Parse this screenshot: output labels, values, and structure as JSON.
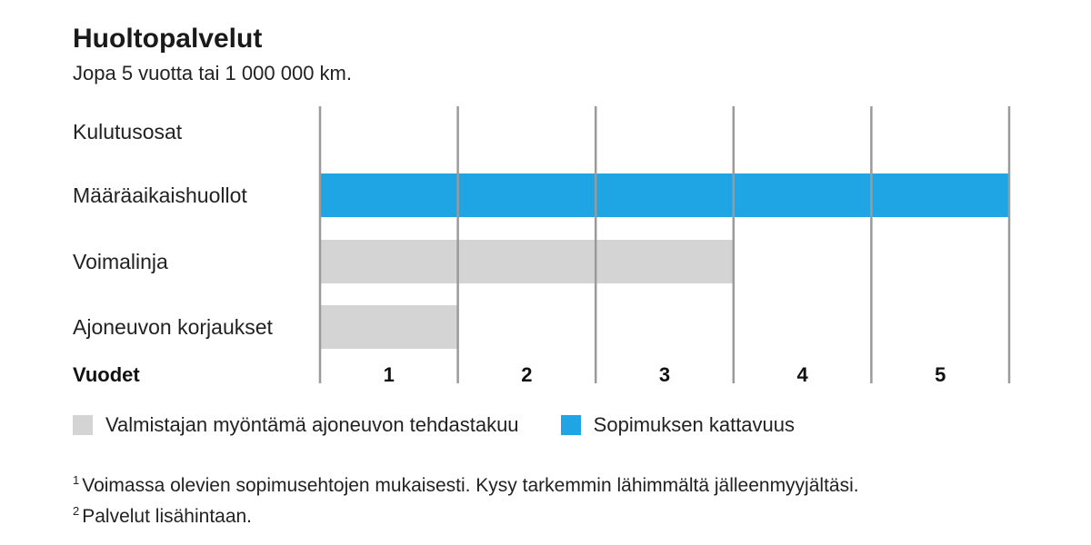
{
  "chart_data": {
    "type": "bar",
    "orientation": "horizontal",
    "title": "Huoltopalvelut",
    "subtitle": "Jopa 5 vuotta tai 1 000 000 km.",
    "xlabel": "Vuodet",
    "ticks": [
      "1",
      "2",
      "3",
      "4",
      "5"
    ],
    "xlim": [
      0,
      5
    ],
    "categories": [
      "Kulutusosat",
      "Määräaikaishuollot",
      "Voimalinja",
      "Ajoneuvon korjaukset"
    ],
    "series": [
      {
        "name": "Valmistajan myöntämä ajoneuvon tehdastakuu",
        "color": "#d4d4d4",
        "values": [
          0,
          0,
          3,
          1
        ]
      },
      {
        "name": "Sopimuksen kattavuus",
        "color": "#1fa5e4",
        "values": [
          0,
          5,
          0,
          0
        ]
      }
    ],
    "grid": true,
    "gridline_color": "#9a9a9a",
    "legend_position": "bottom-left"
  },
  "footnotes": [
    {
      "marker": "1",
      "text": "Voimassa olevien sopimusehtojen mukaisesti. Kysy tarkemmin lähimmältä jälleenmyyjältäsi."
    },
    {
      "marker": "2",
      "text": "Palvelut lisähintaan."
    }
  ]
}
